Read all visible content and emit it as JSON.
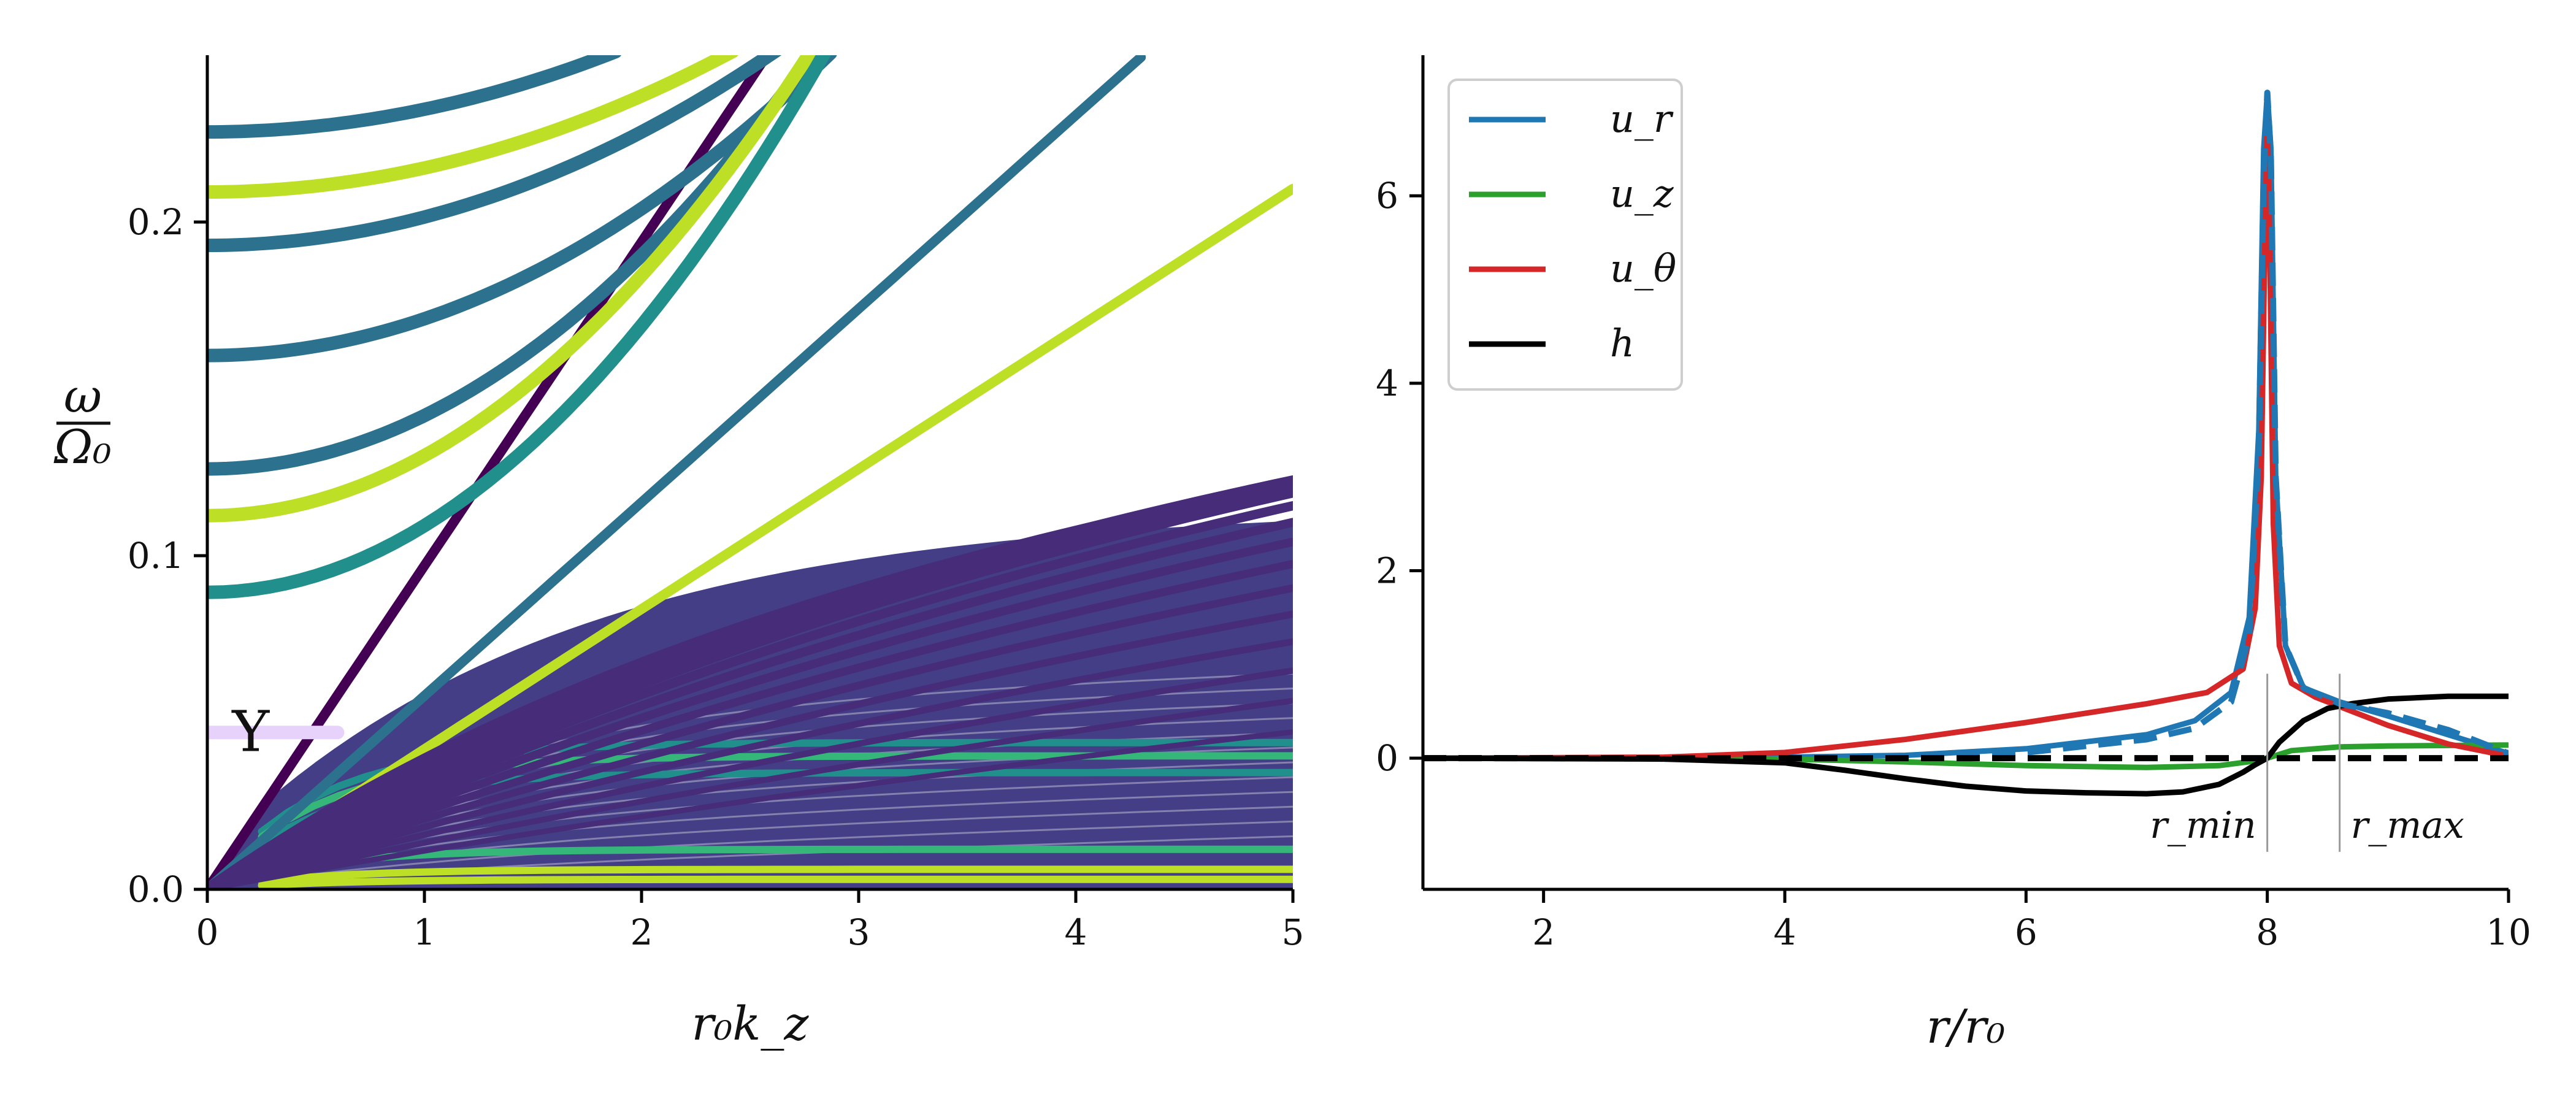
{
  "chart_data": [
    {
      "type": "scatter",
      "xlabel": "r₀k_z",
      "ylabel_num": "ω",
      "ylabel_den": "Ω₀",
      "xlim": [
        0,
        5
      ],
      "ylim": [
        0,
        0.25
      ],
      "xticks": [
        "0",
        "1",
        "2",
        "3",
        "4",
        "5"
      ],
      "yticks": [
        "0.0",
        "0.1",
        "0.2"
      ],
      "ytick_values": [
        0,
        0.1,
        0.2
      ],
      "colormap": "viridis",
      "grid": false,
      "marker_symbol": "Y",
      "marker_point": [
        0.2,
        0.047
      ],
      "colors": {
        "background_fill": "#433e85",
        "dark": "#440154",
        "mid": "#472c7a",
        "teal": "#21908d",
        "blue_teal": "#2c728e",
        "green": "#35b779",
        "yellow": "#bddf26",
        "lavender": "#e6d2fa"
      },
      "branches": [
        {
          "kind": "line",
          "slope": 0.097,
          "color": "dark",
          "x": [
            0,
            2.58
          ]
        },
        {
          "kind": "line",
          "slope": 0.058,
          "color": "blue_teal",
          "x": [
            0,
            4.3
          ]
        },
        {
          "kind": "line",
          "slope": 0.042,
          "color": "yellow",
          "x": [
            0,
            5
          ]
        },
        {
          "kind": "flat",
          "y0": 0.227,
          "a": 0.0068,
          "color": "blue_teal",
          "x": [
            0,
            1.88
          ]
        },
        {
          "kind": "flat",
          "y0": 0.209,
          "a": 0.0072,
          "color": "yellow",
          "x": [
            0,
            2.42
          ]
        },
        {
          "kind": "flat",
          "y0": 0.193,
          "a": 0.0085,
          "color": "blue_teal",
          "x": [
            0,
            2.72
          ]
        },
        {
          "kind": "flat",
          "y0": 0.16,
          "a": 0.011,
          "color": "blue_teal",
          "x": [
            0,
            2.87
          ]
        },
        {
          "kind": "flat",
          "y0": 0.126,
          "a": 0.016,
          "color": "blue_teal",
          "x": [
            0,
            2.7
          ]
        },
        {
          "kind": "flat",
          "y0": 0.112,
          "a": 0.018,
          "color": "yellow",
          "x": [
            0,
            3.9
          ]
        },
        {
          "kind": "flat",
          "y0": 0.089,
          "a": 0.02,
          "color": "teal",
          "x": [
            0,
            4.3
          ]
        },
        {
          "kind": "flat",
          "y0": 0.047,
          "a": 0.0,
          "color": "lavender",
          "x": [
            0,
            0.6
          ]
        },
        {
          "kind": "fan",
          "count": 14,
          "color": "mid"
        }
      ]
    },
    {
      "type": "line",
      "xlabel": "r/r₀",
      "xlim": [
        1,
        10
      ],
      "ylim": [
        -1.4,
        7.5
      ],
      "xticks": [
        "2",
        "4",
        "6",
        "8",
        "10"
      ],
      "xtick_values": [
        2,
        4,
        6,
        8,
        10
      ],
      "yticks": [
        "0",
        "2",
        "4",
        "6"
      ],
      "ytick_values": [
        0,
        2,
        4,
        6
      ],
      "legend_position": "top-left",
      "grid": false,
      "series": [
        {
          "name": "u_r",
          "color": "#1f77b4",
          "x": [
            1,
            3,
            4,
            5,
            6,
            7,
            7.4,
            7.7,
            7.85,
            7.93,
            7.97,
            8.0,
            8.03,
            8.07,
            8.15,
            8.3,
            8.6,
            9,
            9.5,
            10
          ],
          "y": [
            0,
            0,
            0.01,
            0.03,
            0.1,
            0.25,
            0.4,
            0.7,
            1.5,
            3.5,
            6.5,
            7.1,
            6.5,
            3.0,
            1.2,
            0.75,
            0.6,
            0.45,
            0.25,
            0.05
          ]
        },
        {
          "name": "u_z",
          "color": "#2ca02c",
          "x": [
            1,
            3,
            4,
            5,
            6,
            7,
            7.6,
            7.9,
            8.0,
            8.2,
            8.6,
            9,
            10
          ],
          "y": [
            0,
            0,
            -0.01,
            -0.04,
            -0.08,
            -0.1,
            -0.08,
            -0.03,
            0.0,
            0.08,
            0.12,
            0.13,
            0.14
          ]
        },
        {
          "name": "u_θ",
          "color": "#d62728",
          "x": [
            1,
            3,
            4,
            5,
            6,
            7,
            7.5,
            7.8,
            7.9,
            7.95,
            7.98,
            8.0,
            8.02,
            8.05,
            8.1,
            8.2,
            8.4,
            8.6,
            9,
            9.5,
            10
          ],
          "y": [
            0,
            0.01,
            0.06,
            0.2,
            0.38,
            0.58,
            0.7,
            0.95,
            1.6,
            3.0,
            5.5,
            6.8,
            5.5,
            2.5,
            1.2,
            0.8,
            0.65,
            0.55,
            0.35,
            0.15,
            0.02
          ]
        },
        {
          "name": "h",
          "color": "#000000",
          "x": [
            1,
            3,
            4,
            4.5,
            5,
            5.5,
            6,
            6.5,
            7,
            7.3,
            7.6,
            7.8,
            7.9,
            8.0,
            8.1,
            8.3,
            8.5,
            8.7,
            9,
            9.5,
            10
          ],
          "y": [
            0,
            -0.01,
            -0.05,
            -0.13,
            -0.22,
            -0.3,
            -0.35,
            -0.37,
            -0.38,
            -0.36,
            -0.28,
            -0.15,
            -0.07,
            0.0,
            0.17,
            0.4,
            0.53,
            0.58,
            0.63,
            0.66,
            0.66
          ]
        }
      ],
      "dashed_overlays": [
        {
          "color": "#1f77b4",
          "x": [
            1,
            3,
            4,
            5,
            6,
            7,
            7.4,
            7.7,
            7.85,
            7.93,
            7.97,
            8.0,
            8.03,
            8.07,
            8.15,
            8.3,
            8.6,
            9,
            9.5,
            10
          ],
          "y": [
            0,
            0,
            0.0,
            0.02,
            0.06,
            0.2,
            0.32,
            0.6,
            1.3,
            3.3,
            6.2,
            7.1,
            6.4,
            3.0,
            1.2,
            0.75,
            0.58,
            0.48,
            0.3,
            0.05
          ]
        },
        {
          "color": "#000000",
          "x": [
            1,
            10
          ],
          "y": [
            0,
            0
          ]
        }
      ],
      "vlines": [
        {
          "x": 8.0,
          "y": [
            -1.0,
            0.9
          ],
          "label": "r_min"
        },
        {
          "x": 8.6,
          "y": [
            -1.0,
            0.9
          ],
          "label": "r_max"
        }
      ]
    }
  ]
}
